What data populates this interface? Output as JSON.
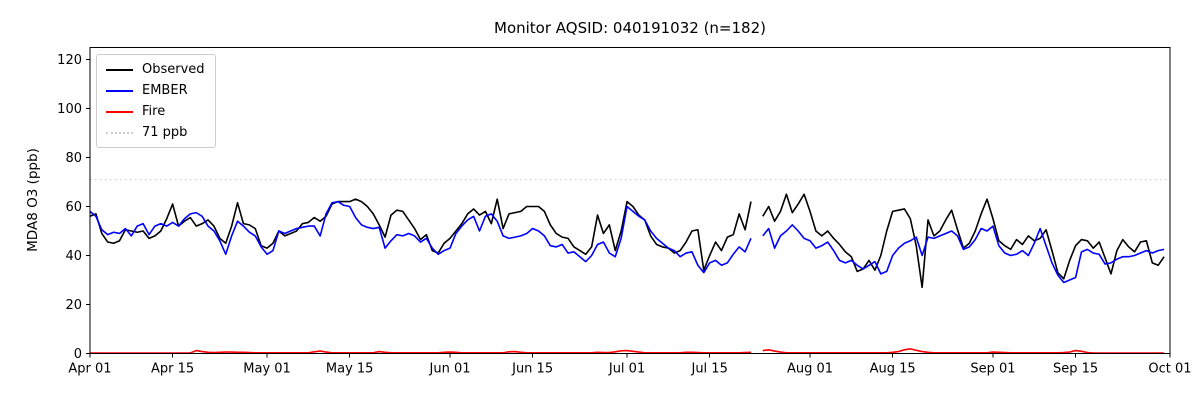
{
  "chart_data": {
    "type": "line",
    "title": "Monitor AQSID: 040191032 (n=182)",
    "ylabel": "MDA8 O3 (ppb)",
    "xlabel": "",
    "ylim": [
      0,
      125
    ],
    "yticks": [
      0,
      20,
      40,
      60,
      80,
      100,
      120
    ],
    "n_days": 183,
    "grid": false,
    "xticks": [
      {
        "day": 0,
        "label": "Apr 01"
      },
      {
        "day": 14,
        "label": "Apr 15"
      },
      {
        "day": 30,
        "label": "May 01"
      },
      {
        "day": 44,
        "label": "May 15"
      },
      {
        "day": 61,
        "label": "Jun 01"
      },
      {
        "day": 75,
        "label": "Jun 15"
      },
      {
        "day": 91,
        "label": "Jul 01"
      },
      {
        "day": 105,
        "label": "Jul 15"
      },
      {
        "day": 122,
        "label": "Aug 01"
      },
      {
        "day": 136,
        "label": "Aug 15"
      },
      {
        "day": 153,
        "label": "Sep 01"
      },
      {
        "day": 167,
        "label": "Sep 15"
      },
      {
        "day": 183,
        "label": "Oct 01"
      }
    ],
    "threshold": {
      "value": 71,
      "label": "71 ppb",
      "color": "#cccccc",
      "style": "dotted"
    },
    "legend": {
      "position": "upper-left",
      "entries": [
        "Observed",
        "EMBER",
        "Fire",
        "71 ppb"
      ]
    },
    "series": [
      {
        "name": "Observed",
        "color": "#000000",
        "style": "solid",
        "values": [
          56,
          57,
          49,
          45.5,
          45,
          46,
          50.5,
          50,
          49.5,
          50,
          47,
          48,
          50,
          55,
          61,
          52,
          54,
          55.5,
          52,
          53,
          54.5,
          52,
          47,
          45,
          52,
          61.5,
          53,
          52.5,
          51,
          44,
          43,
          45,
          50,
          48,
          49,
          50,
          53,
          53.5,
          55.5,
          54,
          56,
          61,
          62,
          62,
          62,
          63,
          62,
          60,
          57,
          52.5,
          47.5,
          56.5,
          58.5,
          58,
          54.5,
          51,
          46.5,
          48.5,
          42,
          41,
          45,
          47,
          50,
          53,
          57,
          59,
          56.5,
          58,
          53,
          63,
          51,
          57,
          57.5,
          58,
          60,
          60,
          60,
          58,
          52.5,
          49,
          47.5,
          47,
          43.5,
          42,
          40.5,
          43.5,
          56.5,
          49,
          52.5,
          42,
          50,
          62,
          60,
          56.5,
          54.5,
          48,
          44.5,
          43.5,
          43,
          41,
          42,
          45.5,
          50,
          50.5,
          34,
          40,
          45.5,
          42,
          47.5,
          48.5,
          57,
          50.5,
          62,
          null,
          56,
          60,
          54,
          58,
          65,
          57.5,
          61,
          65,
          58,
          50,
          48,
          50,
          47,
          44.5,
          41.5,
          39.5,
          33.5,
          34.5,
          38,
          34,
          40,
          50,
          58,
          58.5,
          59,
          55,
          44,
          27,
          54.5,
          48,
          50,
          54.5,
          58.5,
          50.5,
          43,
          45,
          50,
          57,
          63,
          55,
          46,
          44,
          42.5,
          46.5,
          44.5,
          48,
          46,
          47,
          50.5,
          42,
          33,
          30.5,
          38,
          44,
          46.5,
          46,
          43,
          45.5,
          39,
          32.5,
          42,
          46.5,
          43.5,
          41.5,
          45.5,
          46,
          37,
          36,
          39.5
        ]
      },
      {
        "name": "EMBER",
        "color": "#0000ff",
        "style": "solid",
        "values": [
          58,
          56,
          50.5,
          48.5,
          49.5,
          49,
          51,
          48,
          52,
          53,
          48.5,
          52,
          53,
          52,
          53.5,
          52,
          55,
          57,
          57.5,
          56,
          52,
          50,
          46,
          40.5,
          48,
          54,
          52,
          49.5,
          48,
          43.5,
          40.5,
          42,
          50,
          49,
          50,
          51,
          51.5,
          52,
          52,
          48,
          57,
          61.5,
          62,
          60.5,
          60,
          55.5,
          52.5,
          51.5,
          51,
          51.5,
          43,
          46,
          48.5,
          48,
          49,
          48,
          45.5,
          47,
          43,
          40.5,
          42,
          43,
          49,
          52,
          54.5,
          56,
          50,
          56,
          57,
          54,
          48,
          47,
          47.5,
          48,
          49,
          51,
          50,
          48,
          44,
          43.5,
          44.5,
          41,
          41.5,
          39.5,
          37.5,
          40,
          44.5,
          45.5,
          41,
          39.5,
          47,
          60,
          58,
          56,
          54.5,
          50,
          47,
          45,
          43,
          42,
          39.5,
          41,
          41.5,
          36,
          33,
          37,
          38,
          36,
          37,
          40.5,
          43.5,
          41.5,
          47,
          null,
          48,
          51,
          43,
          48,
          50,
          52.5,
          50,
          47,
          46,
          43,
          44,
          45.5,
          42,
          38,
          37,
          38,
          36,
          34.5,
          36,
          37.5,
          32.5,
          33.5,
          40,
          43,
          45,
          46,
          47.5,
          40,
          47.5,
          47,
          48,
          49,
          50,
          48,
          42.5,
          43.5,
          46.5,
          51,
          50,
          52,
          44,
          41,
          40,
          40.5,
          42,
          40,
          45,
          51,
          44,
          37,
          32,
          29,
          30,
          31,
          41.5,
          42.5,
          41,
          40.5,
          36.5,
          37,
          38.5,
          39.5,
          39.5,
          40,
          41,
          42,
          41,
          42,
          42.5
        ]
      },
      {
        "name": "Fire",
        "color": "#ff0000",
        "style": "solid",
        "values": [
          0.2,
          0.2,
          0.2,
          0.2,
          0.2,
          0.2,
          0.2,
          0.2,
          0.2,
          0.2,
          0.2,
          0.2,
          0.2,
          0.2,
          0.2,
          0.2,
          0.2,
          0.2,
          1.2,
          0.8,
          0.5,
          0.4,
          0.5,
          0.6,
          0.6,
          0.5,
          0.5,
          0.4,
          0.3,
          0.3,
          0.3,
          0.3,
          0.3,
          0.3,
          0.3,
          0.3,
          0.3,
          0.3,
          0.7,
          1.0,
          0.6,
          0.3,
          0.3,
          0.3,
          0.3,
          0.3,
          0.3,
          0.3,
          0.3,
          0.8,
          0.5,
          0.3,
          0.3,
          0.3,
          0.3,
          0.3,
          0.3,
          0.3,
          0.3,
          0.3,
          0.5,
          0.6,
          0.5,
          0.3,
          0.3,
          0.3,
          0.3,
          0.3,
          0.3,
          0.3,
          0.3,
          0.7,
          0.8,
          0.5,
          0.3,
          0.3,
          0.3,
          0.3,
          0.3,
          0.3,
          0.3,
          0.3,
          0.3,
          0.3,
          0.3,
          0.3,
          0.5,
          0.4,
          0.4,
          0.7,
          1.1,
          1.2,
          0.9,
          0.6,
          0.3,
          0.3,
          0.3,
          0.3,
          0.3,
          0.3,
          0.3,
          0.5,
          0.5,
          0.4,
          0.3,
          0.3,
          0.3,
          0.3,
          0.3,
          0.3,
          0.3,
          0.4,
          0.5,
          null,
          1.2,
          1.5,
          1.0,
          0.6,
          0.3,
          0.3,
          0.3,
          0.3,
          0.3,
          0.3,
          0.3,
          0.3,
          0.3,
          0.3,
          0.3,
          0.3,
          0.3,
          0.3,
          0.3,
          0.3,
          0.3,
          0.3,
          0.5,
          0.8,
          1.5,
          1.9,
          1.3,
          0.8,
          0.5,
          0.3,
          0.3,
          0.3,
          0.3,
          0.3,
          0.3,
          0.3,
          0.3,
          0.3,
          0.3,
          0.6,
          0.5,
          0.4,
          0.3,
          0.3,
          0.3,
          0.3,
          0.3,
          0.3,
          0.3,
          0.3,
          0.3,
          0.4,
          0.6,
          1.2,
          0.9,
          0.4,
          0.2,
          0.2,
          0.2,
          0.2,
          0.2,
          0.2,
          0.2,
          0.2,
          0.2,
          0.2,
          0.2,
          0.2,
          0.2
        ]
      }
    ]
  }
}
